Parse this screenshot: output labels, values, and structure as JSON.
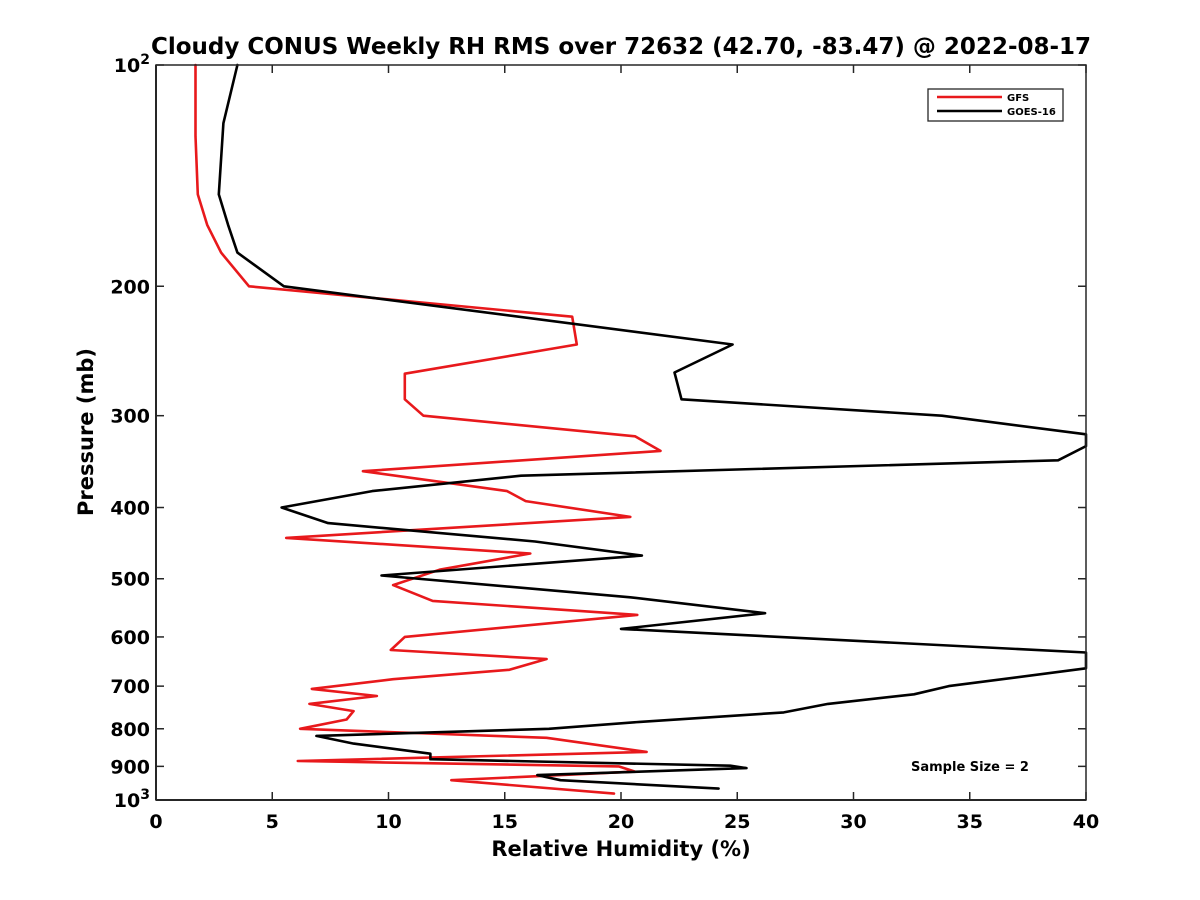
{
  "chart_data": {
    "type": "line",
    "title": "Cloudy CONUS Weekly RH RMS over 72632 (42.70, -83.47) @ 2022-08-17",
    "xlabel": "Relative Humidity (%)",
    "ylabel": "Pressure (mb)",
    "xlim": [
      0,
      40
    ],
    "ylim": [
      100,
      1000
    ],
    "y_scale": "log",
    "y_reversed": true,
    "x_ticks": [
      "0",
      "5",
      "10",
      "15",
      "20",
      "25",
      "30",
      "35",
      "40"
    ],
    "y_ticks": [
      {
        "value": 100,
        "base": "10",
        "exp": "2",
        "label": ""
      },
      {
        "value": 200,
        "base": "",
        "exp": "",
        "label": "200"
      },
      {
        "value": 300,
        "base": "",
        "exp": "",
        "label": "300"
      },
      {
        "value": 400,
        "base": "",
        "exp": "",
        "label": "400"
      },
      {
        "value": 500,
        "base": "",
        "exp": "",
        "label": "500"
      },
      {
        "value": 600,
        "base": "",
        "exp": "",
        "label": "600"
      },
      {
        "value": 700,
        "base": "",
        "exp": "",
        "label": "700"
      },
      {
        "value": 800,
        "base": "",
        "exp": "",
        "label": "800"
      },
      {
        "value": 900,
        "base": "",
        "exp": "",
        "label": "900"
      },
      {
        "value": 1000,
        "base": "10",
        "exp": "3",
        "label": ""
      }
    ],
    "grid": false,
    "legend_position": "top-right",
    "annotation": "Sample Size = 2",
    "series": [
      {
        "name": "GFS",
        "color": "#e8191c",
        "points": [
          [
            1.7,
            100
          ],
          [
            1.7,
            125
          ],
          [
            1.8,
            150
          ],
          [
            2.2,
            165
          ],
          [
            2.8,
            180
          ],
          [
            4.0,
            200
          ],
          [
            17.9,
            220
          ],
          [
            18.1,
            240
          ],
          [
            10.7,
            263
          ],
          [
            10.7,
            285
          ],
          [
            11.5,
            300
          ],
          [
            20.6,
            320
          ],
          [
            21.7,
            335
          ],
          [
            8.9,
            357
          ],
          [
            15.1,
            380
          ],
          [
            15.9,
            392
          ],
          [
            20.4,
            412
          ],
          [
            5.6,
            440
          ],
          [
            16.1,
            462
          ],
          [
            12.2,
            486
          ],
          [
            10.2,
            510
          ],
          [
            11.9,
            536
          ],
          [
            20.7,
            560
          ],
          [
            10.7,
            600
          ],
          [
            10.1,
            625
          ],
          [
            16.8,
            643
          ],
          [
            15.2,
            665
          ],
          [
            10.2,
            685
          ],
          [
            6.7,
            706
          ],
          [
            9.5,
            722
          ],
          [
            6.6,
            740
          ],
          [
            8.5,
            757
          ],
          [
            8.2,
            777
          ],
          [
            6.2,
            800
          ],
          [
            16.8,
            823
          ],
          [
            21.1,
            860
          ],
          [
            6.1,
            885
          ],
          [
            19.9,
            900
          ],
          [
            20.6,
            915
          ],
          [
            12.7,
            940
          ],
          [
            19.7,
            980
          ]
        ]
      },
      {
        "name": "GOES-16",
        "color": "#000000",
        "points": [
          [
            3.5,
            100
          ],
          [
            2.9,
            120
          ],
          [
            2.7,
            150
          ],
          [
            3.1,
            165
          ],
          [
            3.5,
            180
          ],
          [
            5.5,
            200
          ],
          [
            24.8,
            240
          ],
          [
            22.3,
            262
          ],
          [
            22.6,
            285
          ],
          [
            33.8,
            300
          ],
          [
            40.0,
            318
          ],
          [
            40.4,
            330
          ],
          [
            38.8,
            345
          ],
          [
            15.7,
            362
          ],
          [
            9.3,
            380
          ],
          [
            5.4,
            400
          ],
          [
            7.4,
            420
          ],
          [
            16.3,
            445
          ],
          [
            20.9,
            465
          ],
          [
            9.7,
            495
          ],
          [
            20.4,
            530
          ],
          [
            26.2,
            557
          ],
          [
            20.0,
            585
          ],
          [
            40.0,
            630
          ],
          [
            40.4,
            662
          ],
          [
            34.1,
            700
          ],
          [
            32.6,
            718
          ],
          [
            28.9,
            740
          ],
          [
            27.0,
            760
          ],
          [
            20.8,
            783
          ],
          [
            16.9,
            800
          ],
          [
            6.9,
            818
          ],
          [
            8.5,
            838
          ],
          [
            11.8,
            865
          ],
          [
            11.8,
            880
          ],
          [
            24.7,
            898
          ],
          [
            25.4,
            905
          ],
          [
            16.4,
            925
          ],
          [
            17.4,
            940
          ],
          [
            24.2,
            965
          ]
        ]
      }
    ]
  }
}
